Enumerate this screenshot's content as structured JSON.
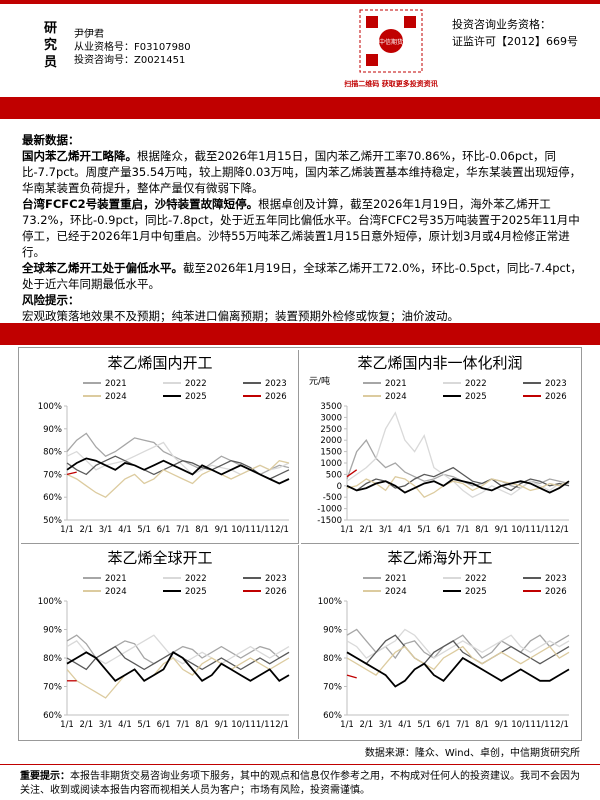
{
  "header": {
    "role": "研究员",
    "name": "尹伊君",
    "license": "从业资格号：F03107980",
    "consult": "投资咨询号：Z0021451",
    "qr_brand": "中信期货",
    "qr_caption": "扫描二维码 获取更多投资资讯",
    "qual_title": "投资咨询业务资格：",
    "qual_no": "证监许可【2012】669号"
  },
  "body": {
    "section_title": "最新数据：",
    "paragraphs": [
      {
        "lead": "国内苯乙烯开工略降。",
        "text": "根据隆众，截至2026年1月15日，国内苯乙烯开工率70.86%，环比-0.06pct，同比-7.7pct。周度产量35.54万吨，较上期降0.03万吨，国内苯乙烯装置基本维持稳定，华东某装置出现短停，华南某装置负荷提升，整体产量仅有微弱下降。"
      },
      {
        "lead": "台湾FCFC2号装置重启，沙特装置故障短停。",
        "text": "根据卓创及计算，截至2026年1月19日，海外苯乙烯开工73.2%，环比-0.9pct，同比-7.8pct，处于近五年同比偏低水平。台湾FCFC2号35万吨装置于2025年11月中停工，已经于2026年1月中旬重启。沙特55万吨苯乙烯装置1月15日意外短停，原计划3月或4月检修正常进行。"
      },
      {
        "lead": "全球苯乙烯开工处于偏低水平。",
        "text": "截至2026年1月19日，全球苯乙烯开工72.0%，环比-0.5pct，同比-7.4pct，处于近六年同期最低水平。"
      }
    ],
    "risk_title": "风险提示：",
    "risk_text": "宏观政策落地效果不及预期；纯苯进口偏离预期；装置预期外检修或恢复；油价波动。"
  },
  "chart_data": [
    {
      "type": "line",
      "title": "苯乙烯国内开工",
      "categories": [
        "1/1",
        null,
        "2/1",
        null,
        "3/1",
        null,
        "4/1",
        null,
        "5/1",
        null,
        "6/1",
        null,
        "7/1",
        null,
        "8/1",
        null,
        "9/1",
        null,
        "10/1",
        null,
        "11/1",
        null,
        "12/1",
        null
      ],
      "ylim": [
        50,
        100
      ],
      "yticks": [
        {
          "value": 50,
          "label": "50%"
        },
        {
          "value": 60,
          "label": "60%"
        },
        {
          "value": 70,
          "label": "70%"
        },
        {
          "value": 80,
          "label": "80%"
        },
        {
          "value": 90,
          "label": "90%"
        },
        {
          "value": 100,
          "label": "100%"
        }
      ],
      "grid": false,
      "series": [
        {
          "name": "2021",
          "color": "#a6a6a6",
          "values": [
            80,
            85,
            88,
            82,
            78,
            80,
            83,
            86,
            85,
            84,
            80,
            78,
            76,
            74,
            72,
            75,
            78,
            76,
            74,
            72,
            70,
            72,
            74,
            73
          ]
        },
        {
          "name": "2022",
          "color": "#d9d9d9",
          "values": [
            78,
            80,
            76,
            72,
            74,
            75,
            76,
            78,
            80,
            82,
            84,
            78,
            74,
            70,
            72,
            74,
            73,
            72,
            70,
            72,
            74,
            72,
            73,
            75
          ]
        },
        {
          "name": "2023",
          "color": "#595959",
          "values": [
            75,
            72,
            70,
            74,
            76,
            78,
            76,
            74,
            72,
            70,
            72,
            74,
            76,
            75,
            73,
            72,
            74,
            76,
            75,
            73,
            70,
            68,
            70,
            72
          ]
        },
        {
          "name": "2024",
          "color": "#dccb9f",
          "values": [
            70,
            68,
            65,
            62,
            60,
            64,
            68,
            70,
            66,
            68,
            72,
            70,
            68,
            66,
            70,
            72,
            70,
            68,
            70,
            72,
            74,
            72,
            76,
            75
          ]
        },
        {
          "name": "2025",
          "color": "#000000",
          "values": [
            72,
            75,
            77,
            76,
            74,
            72,
            75,
            74,
            72,
            74,
            76,
            74,
            72,
            70,
            74,
            72,
            70,
            72,
            74,
            72,
            70,
            68,
            66,
            68
          ]
        },
        {
          "name": "2026",
          "color": "#c00000",
          "values": [
            70,
            71,
            null,
            null,
            null,
            null,
            null,
            null,
            null,
            null,
            null,
            null,
            null,
            null,
            null,
            null,
            null,
            null,
            null,
            null,
            null,
            null,
            null,
            null
          ]
        }
      ]
    },
    {
      "type": "line",
      "title": "苯乙烯国内非一体化利润",
      "ylabel": "元/吨",
      "categories": [
        "1/1",
        null,
        "2/1",
        null,
        "3/1",
        null,
        "4/1",
        null,
        "5/1",
        null,
        "6/1",
        null,
        "7/1",
        null,
        "8/1",
        null,
        "9/1",
        null,
        "10/1",
        null,
        "11/1",
        null,
        "12/1",
        null
      ],
      "ylim": [
        -1500,
        3500
      ],
      "yticks": [
        -1500,
        -1000,
        -500,
        0,
        500,
        1000,
        1500,
        2000,
        2500,
        3000,
        3500
      ],
      "grid": false,
      "series": [
        {
          "name": "2021",
          "color": "#a6a6a6",
          "values": [
            300,
            1500,
            2000,
            1200,
            800,
            1000,
            600,
            400,
            200,
            300,
            500,
            400,
            200,
            0,
            100,
            300,
            200,
            0,
            -100,
            200,
            100,
            300,
            200,
            100
          ]
        },
        {
          "name": "2022",
          "color": "#d9d9d9",
          "values": [
            200,
            500,
            800,
            1200,
            2500,
            3200,
            2000,
            1500,
            2200,
            800,
            500,
            200,
            -200,
            -500,
            -300,
            0,
            -200,
            -400,
            -100,
            200,
            0,
            -200,
            100,
            0
          ]
        },
        {
          "name": "2023",
          "color": "#595959",
          "values": [
            0,
            -200,
            100,
            300,
            200,
            -100,
            0,
            300,
            500,
            400,
            600,
            800,
            500,
            200,
            100,
            300,
            0,
            -200,
            100,
            300,
            200,
            0,
            100,
            0
          ]
        },
        {
          "name": "2024",
          "color": "#dccb9f",
          "values": [
            -100,
            0,
            300,
            100,
            -200,
            400,
            300,
            0,
            -500,
            -300,
            0,
            200,
            100,
            -200,
            0,
            300,
            200,
            100,
            0,
            -200,
            -100,
            100,
            0,
            200
          ]
        },
        {
          "name": "2025",
          "color": "#000000",
          "values": [
            0,
            -200,
            -100,
            100,
            200,
            0,
            -300,
            -100,
            100,
            200,
            0,
            300,
            200,
            100,
            -100,
            -200,
            0,
            100,
            200,
            100,
            -100,
            -300,
            -100,
            200
          ]
        },
        {
          "name": "2026",
          "color": "#c00000",
          "values": [
            400,
            700,
            null,
            null,
            null,
            null,
            null,
            null,
            null,
            null,
            null,
            null,
            null,
            null,
            null,
            null,
            null,
            null,
            null,
            null,
            null,
            null,
            null,
            null
          ]
        }
      ]
    },
    {
      "type": "line",
      "title": "苯乙烯全球开工",
      "categories": [
        "1/1",
        null,
        "2/1",
        null,
        "3/1",
        null,
        "4/1",
        null,
        "5/1",
        null,
        "6/1",
        null,
        "7/1",
        null,
        "8/1",
        null,
        "9/1",
        null,
        "10/1",
        null,
        "11/1",
        null,
        "12/1",
        null
      ],
      "ylim": [
        60,
        100
      ],
      "yticks": [
        {
          "value": 60,
          "label": "60%"
        },
        {
          "value": 70,
          "label": "70%"
        },
        {
          "value": 80,
          "label": "80%"
        },
        {
          "value": 90,
          "label": "90%"
        },
        {
          "value": 100,
          "label": "100%"
        }
      ],
      "grid": false,
      "series": [
        {
          "name": "2021",
          "color": "#a6a6a6",
          "values": [
            86,
            88,
            85,
            80,
            82,
            84,
            86,
            85,
            80,
            78,
            80,
            82,
            84,
            83,
            80,
            82,
            84,
            82,
            80,
            82,
            84,
            83,
            80,
            82
          ]
        },
        {
          "name": "2022",
          "color": "#d9d9d9",
          "values": [
            84,
            86,
            82,
            80,
            78,
            80,
            82,
            84,
            86,
            88,
            84,
            80,
            78,
            80,
            82,
            80,
            78,
            80,
            82,
            84,
            82,
            80,
            82,
            84
          ]
        },
        {
          "name": "2023",
          "color": "#595959",
          "values": [
            80,
            78,
            76,
            80,
            82,
            84,
            80,
            78,
            76,
            78,
            80,
            82,
            80,
            78,
            76,
            78,
            80,
            78,
            76,
            78,
            80,
            78,
            80,
            82
          ]
        },
        {
          "name": "2024",
          "color": "#dccb9f",
          "values": [
            76,
            72,
            70,
            68,
            66,
            70,
            74,
            76,
            72,
            74,
            78,
            80,
            76,
            74,
            78,
            80,
            78,
            76,
            78,
            80,
            78,
            76,
            78,
            80
          ]
        },
        {
          "name": "2025",
          "color": "#000000",
          "values": [
            78,
            80,
            82,
            80,
            76,
            72,
            74,
            76,
            72,
            74,
            76,
            82,
            80,
            76,
            72,
            74,
            78,
            76,
            74,
            72,
            74,
            76,
            72,
            74
          ]
        },
        {
          "name": "2026",
          "color": "#c00000",
          "values": [
            72,
            72,
            null,
            null,
            null,
            null,
            null,
            null,
            null,
            null,
            null,
            null,
            null,
            null,
            null,
            null,
            null,
            null,
            null,
            null,
            null,
            null,
            null,
            null
          ]
        }
      ]
    },
    {
      "type": "line",
      "title": "苯乙烯海外开工",
      "categories": [
        "1/1",
        null,
        "2/1",
        null,
        "3/1",
        null,
        "4/1",
        null,
        "5/1",
        null,
        "6/1",
        null,
        "7/1",
        null,
        "8/1",
        null,
        "9/1",
        null,
        "10/1",
        null,
        "11/1",
        null,
        "12/1",
        null
      ],
      "ylim": [
        60,
        100
      ],
      "yticks": [
        {
          "value": 60,
          "label": "60%"
        },
        {
          "value": 70,
          "label": "70%"
        },
        {
          "value": 80,
          "label": "80%"
        },
        {
          "value": 90,
          "label": "90%"
        },
        {
          "value": 100,
          "label": "100%"
        }
      ],
      "grid": false,
      "series": [
        {
          "name": "2021",
          "color": "#a6a6a6",
          "values": [
            88,
            90,
            86,
            82,
            84,
            80,
            85,
            86,
            82,
            80,
            84,
            86,
            88,
            84,
            80,
            82,
            86,
            84,
            82,
            86,
            88,
            84,
            86,
            88
          ]
        },
        {
          "name": "2022",
          "color": "#d9d9d9",
          "values": [
            86,
            84,
            80,
            82,
            84,
            86,
            90,
            88,
            84,
            80,
            82,
            84,
            86,
            84,
            82,
            84,
            86,
            88,
            84,
            82,
            84,
            86,
            84,
            86
          ]
        },
        {
          "name": "2023",
          "color": "#595959",
          "values": [
            82,
            80,
            78,
            82,
            86,
            88,
            84,
            80,
            78,
            82,
            84,
            86,
            82,
            80,
            78,
            80,
            82,
            84,
            82,
            80,
            78,
            80,
            82,
            84
          ]
        },
        {
          "name": "2024",
          "color": "#dccb9f",
          "values": [
            80,
            78,
            76,
            74,
            78,
            82,
            84,
            80,
            78,
            76,
            80,
            82,
            84,
            80,
            78,
            80,
            82,
            80,
            78,
            80,
            82,
            84,
            80,
            82
          ]
        },
        {
          "name": "2025",
          "color": "#000000",
          "values": [
            82,
            80,
            78,
            76,
            74,
            70,
            72,
            76,
            78,
            74,
            72,
            76,
            80,
            78,
            76,
            74,
            72,
            74,
            76,
            74,
            72,
            72,
            74,
            76
          ]
        },
        {
          "name": "2026",
          "color": "#c00000",
          "values": [
            74,
            73,
            null,
            null,
            null,
            null,
            null,
            null,
            null,
            null,
            null,
            null,
            null,
            null,
            null,
            null,
            null,
            null,
            null,
            null,
            null,
            null,
            null,
            null
          ]
        }
      ]
    }
  ],
  "footer": {
    "source": "数据来源：隆众、Wind、卓创，中信期货研究所",
    "notice_lead": "重要提示：",
    "notice": "本报告非期货交易咨询业务项下服务，其中的观点和信息仅作参考之用，不构成对任何人的投资建议。我司不会因为关注、收到或阅读本报告内容而视相关人员为客户；市场有风险，投资需谨慎。"
  }
}
